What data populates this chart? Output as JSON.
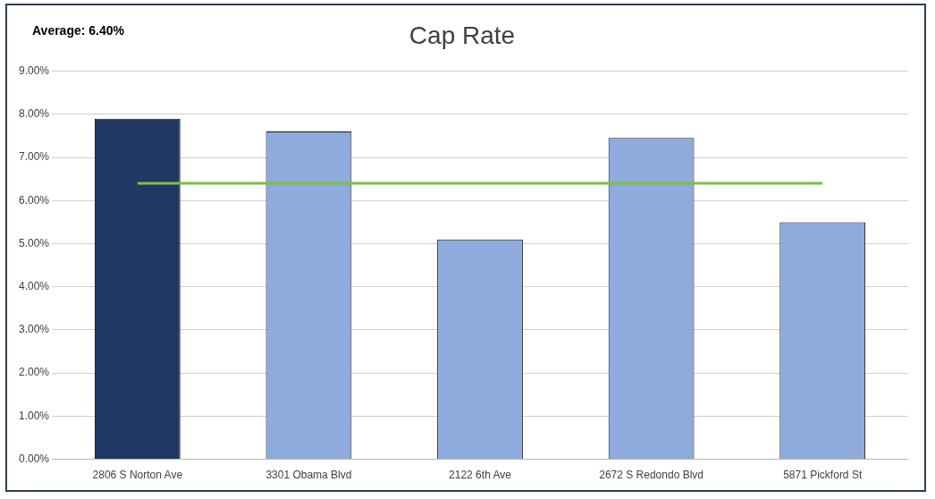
{
  "chart_data": {
    "type": "bar",
    "title": "Cap Rate",
    "categories": [
      "2806 S Norton Ave",
      "3301 Obama Blvd",
      "2122 6th Ave",
      "2672 S Redondo Blvd",
      "5871 Pickford St"
    ],
    "values": [
      7.9,
      7.6,
      5.1,
      7.45,
      5.5
    ],
    "colors": [
      "#203864",
      "#8faadc",
      "#8faadc",
      "#8faadc",
      "#8faadc"
    ],
    "ylim": [
      0,
      9
    ],
    "yticks": [
      {
        "value": 0,
        "label": "0.00%"
      },
      {
        "value": 1,
        "label": "1.00%"
      },
      {
        "value": 2,
        "label": "2.00%"
      },
      {
        "value": 3,
        "label": "3.00%"
      },
      {
        "value": 4,
        "label": "4.00%"
      },
      {
        "value": 5,
        "label": "5.00%"
      },
      {
        "value": 6,
        "label": "6.00%"
      },
      {
        "value": 7,
        "label": "7.00%"
      },
      {
        "value": 8,
        "label": "8.00%"
      },
      {
        "value": 9,
        "label": "9.00%"
      }
    ],
    "grid": "y",
    "legend": false,
    "annotations": [
      "Average: 6.40%"
    ],
    "ref_lines": [
      {
        "axis": "y",
        "value": 6.4,
        "color": "#7ac142"
      }
    ]
  }
}
